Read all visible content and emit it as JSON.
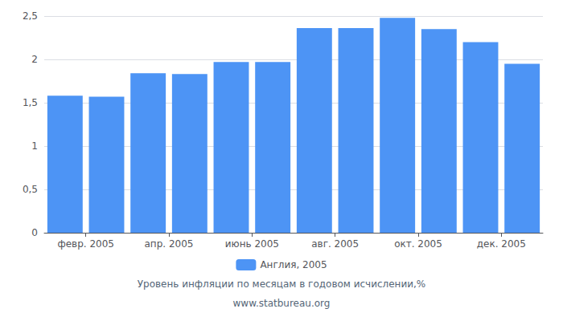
{
  "chart_data": {
    "type": "bar",
    "categories": [
      "февр. 2005",
      null,
      "апр. 2005",
      null,
      "июнь 2005",
      null,
      "авг. 2005",
      null,
      "окт. 2005",
      null,
      "дек. 2005",
      null
    ],
    "series": [
      {
        "name": "Англия, 2005",
        "color": "#4d94f5",
        "values": [
          1.58,
          1.57,
          1.84,
          1.83,
          1.97,
          1.97,
          2.36,
          2.36,
          2.48,
          2.35,
          2.2,
          1.95
        ]
      }
    ],
    "ylim": [
      0,
      2.5
    ],
    "yticks": [
      0,
      {
        "value": 0.5,
        "label": "0,5"
      },
      1,
      {
        "value": 1.5,
        "label": "1,5"
      },
      2,
      {
        "value": 2.5,
        "label": "2,5"
      }
    ],
    "xlabel": "Уровень инфляции по месяцам в годовом исчислении,%",
    "annotations": [
      "www.statbureau.org"
    ],
    "grid": true,
    "legend": "bottom"
  }
}
